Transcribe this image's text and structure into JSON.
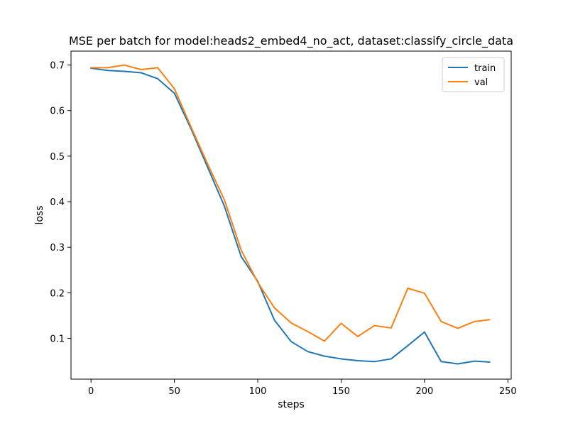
{
  "chart_data": {
    "type": "line",
    "title": "MSE per batch for model:heads2_embed4_no_act, dataset:classify_circle_data",
    "xlabel": "steps",
    "ylabel": "loss",
    "xlim": [
      -12,
      252
    ],
    "ylim": [
      0.0105,
      0.7305
    ],
    "xticks": [
      0,
      50,
      100,
      150,
      200,
      250
    ],
    "yticks": [
      0.1,
      0.2,
      0.3,
      0.4,
      0.5,
      0.6,
      0.7
    ],
    "grid": false,
    "legend": "top-right",
    "x": [
      0,
      10,
      20,
      30,
      40,
      50,
      60,
      70,
      80,
      90,
      100,
      110,
      120,
      130,
      140,
      150,
      160,
      170,
      180,
      190,
      200,
      210,
      220,
      230,
      239
    ],
    "series": [
      {
        "name": "train",
        "color": "#1f77b4",
        "values": [
          0.693,
          0.688,
          0.686,
          0.683,
          0.67,
          0.638,
          0.56,
          0.475,
          0.39,
          0.28,
          0.225,
          0.14,
          0.093,
          0.071,
          0.061,
          0.055,
          0.051,
          0.049,
          0.055,
          0.084,
          0.114,
          0.049,
          0.044,
          0.05,
          0.048
        ]
      },
      {
        "name": "val",
        "color": "#ff7f0e",
        "values": [
          0.694,
          0.694,
          0.7,
          0.69,
          0.694,
          0.648,
          0.564,
          0.482,
          0.404,
          0.294,
          0.223,
          0.167,
          0.134,
          0.115,
          0.094,
          0.133,
          0.104,
          0.128,
          0.123,
          0.21,
          0.199,
          0.137,
          0.122,
          0.137,
          0.141
        ]
      }
    ]
  }
}
